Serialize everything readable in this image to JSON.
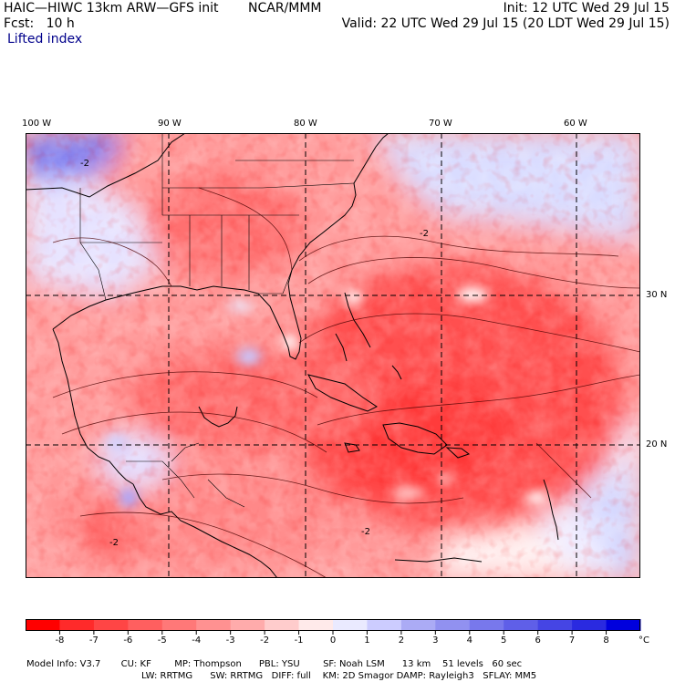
{
  "header": {
    "model_title": "HAIC—HIWC 13km ARW—GFS init",
    "organization": "NCAR/MMM",
    "init_time": "Init: 12 UTC Wed 29 Jul 15",
    "forecast_hour": "Fcst:   10 h",
    "valid_time": "Valid: 22 UTC Wed 29 Jul 15 (20 LDT Wed 29 Jul 15)",
    "field_name": "Lifted index"
  },
  "map": {
    "longitude_labels": [
      "100 W",
      "90 W",
      "80 W",
      "70 W",
      "60 W"
    ],
    "latitude_labels": [
      "30 N",
      "20 N"
    ],
    "contour_labels": [
      "-2",
      "-2",
      "-2",
      "-2"
    ]
  },
  "colorbar": {
    "tick_labels": [
      "-8",
      "-7",
      "-6",
      "-5",
      "-4",
      "-3",
      "-2",
      "-1",
      "0",
      "1",
      "2",
      "3",
      "4",
      "5",
      "6",
      "7",
      "8"
    ],
    "unit": "°C",
    "colors": [
      "#ff0000",
      "#ff2a2a",
      "#ff4545",
      "#ff5f5f",
      "#ff7878",
      "#ff9191",
      "#ffabab",
      "#ffcccc",
      "#ffeaea",
      "#eaeaff",
      "#ccccff",
      "#ababf5",
      "#9191f0",
      "#7878ec",
      "#5f5fe8",
      "#4545e4",
      "#2a2ae0",
      "#0000dd"
    ]
  },
  "model_info": {
    "line1": "Model Info: V3.7       CU: KF        MP: Thompson      PBL: YSU        SF: Noah LSM      13 km    51 levels   60 sec",
    "line2": "LW: RRTMG      SW: RRTMG   DIFF: full    KM: 2D Smagor DAMP: Rayleigh3   SFLAY: MM5"
  }
}
